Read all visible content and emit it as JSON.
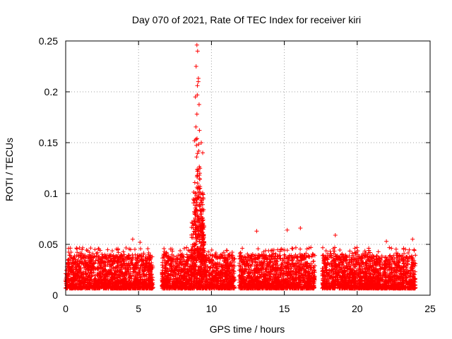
{
  "chart_data": {
    "type": "scatter",
    "title": "Day 070 of 2021, Rate Of TEC Index for receiver kiri",
    "xlabel": "GPS time / hours",
    "ylabel": "ROTI / TECUs",
    "xlim": [
      0,
      25
    ],
    "ylim": [
      0,
      0.25
    ],
    "x_ticks": [
      0,
      5,
      10,
      15,
      20,
      25
    ],
    "x_tick_labels": [
      "0",
      "5",
      "10",
      "15",
      "20",
      "25"
    ],
    "y_ticks": [
      0,
      0.05,
      0.1,
      0.15,
      0.2,
      0.25
    ],
    "y_tick_labels": [
      "0",
      "0.05",
      "0.1",
      "0.15",
      "0.2",
      "0.25"
    ],
    "grid": true,
    "marker": "+",
    "series": [
      {
        "name": "ROTI",
        "color": "#ff0000",
        "baseline_segments": [
          {
            "x_start": 0.0,
            "x_end": 6.0,
            "y_min": 0.003,
            "y_max": 0.04
          },
          {
            "x_start": 6.6,
            "x_end": 11.6,
            "y_min": 0.003,
            "y_max": 0.04
          },
          {
            "x_start": 11.9,
            "x_end": 17.1,
            "y_min": 0.003,
            "y_max": 0.04
          },
          {
            "x_start": 17.6,
            "x_end": 24.0,
            "y_min": 0.003,
            "y_max": 0.04
          }
        ],
        "spike": {
          "x_start": 8.6,
          "x_end": 9.6,
          "y_min": 0.02,
          "y_max": 0.246
        },
        "notable_points": [
          {
            "x": 9.0,
            "y": 0.246
          },
          {
            "x": 9.05,
            "y": 0.24
          },
          {
            "x": 8.95,
            "y": 0.225
          },
          {
            "x": 9.1,
            "y": 0.21
          },
          {
            "x": 8.9,
            "y": 0.195
          },
          {
            "x": 9.3,
            "y": 0.15
          },
          {
            "x": 9.4,
            "y": 0.14
          },
          {
            "x": 9.2,
            "y": 0.12
          },
          {
            "x": 13.1,
            "y": 0.063
          },
          {
            "x": 15.2,
            "y": 0.064
          },
          {
            "x": 16.1,
            "y": 0.066
          },
          {
            "x": 18.5,
            "y": 0.059
          },
          {
            "x": 22.0,
            "y": 0.053
          },
          {
            "x": 23.8,
            "y": 0.055
          },
          {
            "x": 4.6,
            "y": 0.055
          },
          {
            "x": 5.1,
            "y": 0.052
          },
          {
            "x": 0.2,
            "y": 0.046
          }
        ]
      }
    ]
  }
}
